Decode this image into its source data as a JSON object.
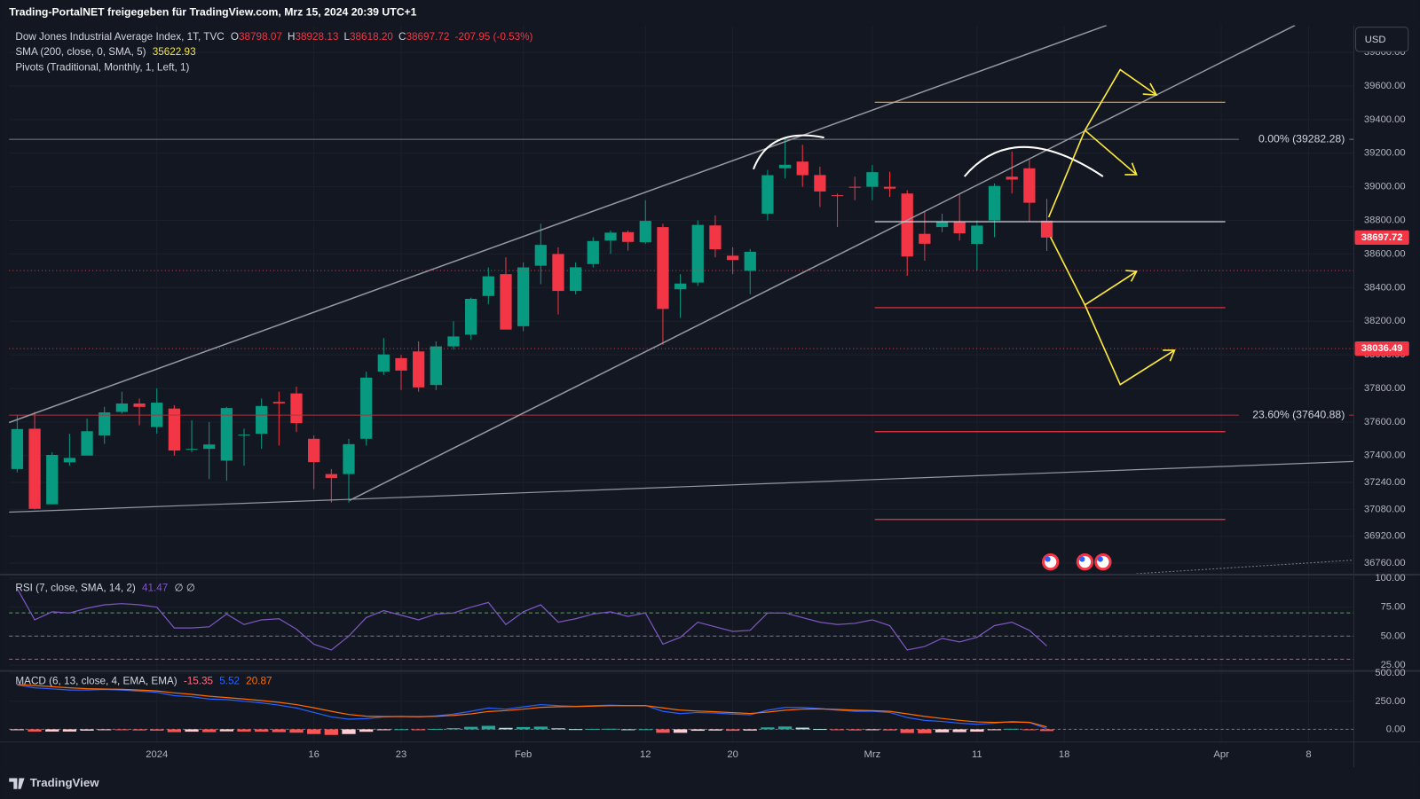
{
  "header": {
    "title": "Trading-PortalNET freigegeben für TradingView.com, Mrz 15, 2024 20:39 UTC+1"
  },
  "footer": {
    "brand": "TradingView"
  },
  "currency": "USD",
  "chart_data": [
    {
      "type": "candlestick",
      "title": "Dow Jones Industrial Average Index, 1T, TVC",
      "ohlc_prefixes": [
        "O",
        "H",
        "L",
        "C"
      ],
      "ohlc_value_labels": [
        "38798.07",
        "38928.13",
        "38618.20",
        "38697.72"
      ],
      "change_label": "-207.95 (-0.53%)",
      "indicators": [
        {
          "label": "SMA (200, close, 0, SMA, 5)",
          "value": 35622.93,
          "color": "#f0e442"
        },
        {
          "label": "Pivots (Traditional, Monthly, 1, Left, 1)"
        }
      ],
      "up_color": "#089981",
      "down_color": "#f23645",
      "grid": true,
      "categories": [
        null,
        null,
        null,
        null,
        null,
        null,
        null,
        null,
        "2024",
        null,
        null,
        null,
        null,
        null,
        null,
        null,
        null,
        "16",
        null,
        null,
        null,
        null,
        "23",
        null,
        null,
        null,
        null,
        null,
        null,
        "Feb",
        null,
        null,
        null,
        null,
        null,
        null,
        "12",
        null,
        null,
        null,
        null,
        "20",
        null,
        null,
        null,
        null,
        null,
        null,
        null,
        "Mrz",
        null,
        null,
        null,
        null,
        null,
        "11",
        null,
        null,
        null,
        null,
        "18",
        null,
        null,
        null,
        null,
        null,
        null,
        null,
        null,
        "Apr",
        null,
        null,
        null,
        null,
        "8",
        null,
        null
      ],
      "open": [
        37320,
        37560,
        37110,
        37360,
        37400,
        37520,
        37660,
        37710,
        37570,
        37680,
        37440,
        37440,
        37370,
        37520,
        37530,
        37720,
        37770,
        37500,
        37290,
        37290,
        37500,
        37900,
        37980,
        38020,
        37820,
        38050,
        38120,
        38350,
        38480,
        38170,
        38530,
        38600,
        38380,
        38540,
        38680,
        38730,
        38670,
        38760,
        38390,
        38430,
        38770,
        38590,
        38500,
        38840,
        39110,
        39150,
        39070,
        38950,
        39000,
        39000,
        39000,
        38960,
        38720,
        38760,
        38790,
        38660,
        38800,
        39060,
        39110,
        38798.07,
        null,
        null,
        null,
        null,
        null,
        null,
        null,
        null,
        null,
        null,
        null,
        null,
        null,
        null,
        null,
        null,
        null
      ],
      "high": [
        37640,
        37660,
        37420,
        37530,
        37620,
        37690,
        37780,
        37740,
        37800,
        37700,
        37610,
        37600,
        37690,
        37560,
        37740,
        37780,
        37810,
        37520,
        37320,
        37500,
        37900,
        38100,
        38000,
        38080,
        38080,
        38200,
        38340,
        38520,
        38580,
        38550,
        38780,
        38640,
        38550,
        38700,
        38740,
        38740,
        38920,
        38780,
        38480,
        38800,
        38830,
        38640,
        38630,
        39100,
        39280,
        39250,
        39120,
        38960,
        39060,
        39130,
        39090,
        38980,
        38850,
        38840,
        38960,
        38800,
        39020,
        39210,
        39160,
        38928.13,
        null,
        null,
        null,
        null,
        null,
        null,
        null,
        null,
        null,
        null,
        null,
        null,
        null,
        null,
        null,
        null,
        null
      ],
      "low": [
        37300,
        37080,
        37110,
        37340,
        37400,
        37470,
        37650,
        37580,
        37530,
        37400,
        37420,
        37260,
        37250,
        37340,
        37440,
        37460,
        37540,
        37200,
        37120,
        37120,
        37460,
        37880,
        37790,
        37780,
        37790,
        38030,
        38090,
        38300,
        38150,
        38140,
        38420,
        38240,
        38360,
        38520,
        38600,
        38620,
        38660,
        38060,
        38220,
        38410,
        38580,
        38480,
        38360,
        38800,
        39050,
        39000,
        38880,
        38760,
        38920,
        38920,
        38940,
        38470,
        38560,
        38730,
        38680,
        38500,
        38700,
        38960,
        38790,
        38618.2,
        null,
        null,
        null,
        null,
        null,
        null,
        null,
        null,
        null,
        null,
        null,
        null,
        null,
        null,
        null,
        null,
        null
      ],
      "close": [
        37558,
        37083,
        37404,
        37386,
        37545,
        37657,
        37710,
        37690,
        37715,
        37430,
        37440,
        37466,
        37683,
        37525,
        37695,
        37711,
        37593,
        37361,
        37267,
        37468,
        37864,
        38002,
        37906,
        37806,
        38050,
        38109,
        38333,
        38467,
        38150,
        38520,
        38654,
        38380,
        38521,
        38677,
        38727,
        38672,
        38797,
        38273,
        38424,
        38773,
        38628,
        38564,
        38613,
        39069,
        39131,
        39069,
        38972,
        38949,
        38996,
        39087,
        38989,
        38585,
        38661,
        38791,
        38723,
        38769,
        39005,
        39043,
        38905,
        38697.72,
        null,
        null,
        null,
        null,
        null,
        null,
        null,
        null,
        null,
        null,
        null,
        null,
        null,
        null,
        null,
        null,
        null
      ],
      "ylim": [
        36697,
        39961
      ],
      "yticks": [
        {
          "value": 39800,
          "label": "39800.00"
        },
        {
          "value": 39600,
          "label": "39600.00"
        },
        {
          "value": 39400,
          "label": "39400.00"
        },
        {
          "value": 39200,
          "label": "39200.00"
        },
        {
          "value": 39000,
          "label": "39000.00"
        },
        {
          "value": 38800,
          "label": "38800.00"
        },
        {
          "value": 38600,
          "label": "38600.00"
        },
        {
          "value": 38400,
          "label": "38400.00"
        },
        {
          "value": 38200,
          "label": "38200.00"
        },
        {
          "value": 38000,
          "label": "38000.00"
        },
        {
          "value": 37800,
          "label": "37800.00"
        },
        {
          "value": 37600,
          "label": "37600.00"
        },
        {
          "value": 37400,
          "label": "37400.00"
        },
        {
          "value": 37240,
          "label": "37240.00"
        },
        {
          "value": 37080,
          "label": "37080.00"
        },
        {
          "value": 36920,
          "label": "36920.00"
        },
        {
          "value": 36760,
          "label": "36760.00"
        }
      ],
      "fib_levels": [
        {
          "value": 39282.28,
          "label": "0.00% (39282.28)",
          "color": "#787b86"
        },
        {
          "value": 37640.88,
          "label": "23.60% (37640.88)",
          "color": "#b2323c"
        }
      ],
      "price_lines": [
        {
          "value": 38036.49,
          "color": "#f23645"
        }
      ]
    },
    {
      "type": "line",
      "title": "RSI (7, close, SMA, 14, 2)",
      "extra": "∅ ∅",
      "color": "#7e57c2",
      "grid": true,
      "values": [
        91,
        64,
        71,
        70,
        74,
        77,
        78,
        77,
        75,
        57,
        57,
        58,
        69,
        60,
        64,
        65,
        56,
        43,
        38,
        50,
        66,
        72,
        68,
        64,
        69,
        70,
        75,
        79,
        60,
        71,
        77,
        62,
        65,
        69,
        71,
        67,
        70,
        43,
        49,
        62,
        58,
        54,
        55,
        70,
        70,
        66,
        62,
        60,
        61,
        64,
        59,
        38,
        41,
        48,
        45,
        49,
        59,
        62,
        55,
        41.47
      ],
      "ylim": [
        20.3,
        102.3
      ],
      "yticks": [
        {
          "value": 100,
          "label": "100.00"
        },
        {
          "value": 75,
          "label": "75.00"
        },
        {
          "value": 50,
          "label": "50.00"
        },
        {
          "value": 25,
          "label": "25.00"
        }
      ],
      "bands": [
        {
          "value": 70,
          "color": "#4caf50"
        },
        {
          "value": 50,
          "color": "#787b86"
        },
        {
          "value": 30,
          "color": "#f23645"
        }
      ]
    },
    {
      "type": "macd",
      "title": "MACD (6, 13, close, 4, EMA, EMA)",
      "grid": true,
      "histogram": [
        -5,
        -20,
        -20,
        -20,
        -12,
        -4,
        -6,
        -10,
        -12,
        -25,
        -21,
        -25,
        -18,
        -20,
        -21,
        -25,
        -30,
        -42,
        -50,
        -42,
        -22,
        -4,
        1,
        -3,
        4,
        11,
        22,
        31,
        13,
        20,
        24,
        9,
        2,
        4,
        5,
        0,
        1,
        -31,
        -31,
        -13,
        -11,
        -13,
        -11,
        17,
        25,
        15,
        3,
        -7,
        -10,
        -6,
        -10,
        -33,
        -35,
        -27,
        -25,
        -21,
        -7,
        5,
        -3,
        -15.35
      ],
      "histogram_colors": [
        "#26a69a",
        "#b2dfdb",
        "#ffcdd2",
        "#ff5252"
      ],
      "histogram_legend_color": "#ff6b81",
      "series": [
        {
          "color": "#2962ff",
          "values": [
            395,
            370,
            360,
            350,
            350,
            355,
            350,
            340,
            330,
            300,
            290,
            270,
            265,
            250,
            235,
            215,
            190,
            150,
            110,
            90,
            95,
            110,
            115,
            110,
            120,
            135,
            160,
            190,
            180,
            200,
            220,
            210,
            205,
            210,
            215,
            210,
            212,
            160,
            140,
            150,
            145,
            135,
            130,
            170,
            195,
            195,
            185,
            170,
            160,
            160,
            150,
            105,
            80,
            70,
            55,
            45,
            55,
            70,
            60,
            5.52
          ]
        },
        {
          "color": "#ff6d00",
          "values": [
            400,
            390,
            380,
            370,
            362,
            359,
            356,
            350,
            342,
            325,
            311,
            295,
            283,
            270,
            256,
            240,
            220,
            192,
            160,
            132,
            117,
            114,
            114,
            113,
            116,
            124,
            138,
            159,
            167,
            180,
            196,
            201,
            203,
            206,
            210,
            210,
            211,
            191,
            171,
            163,
            156,
            148,
            141,
            153,
            170,
            180,
            182,
            177,
            170,
            166,
            160,
            138,
            115,
            97,
            80,
            66,
            62,
            65,
            63,
            20.87
          ]
        }
      ],
      "ylim": [
        -113,
        516
      ],
      "yticks": [
        {
          "value": 500,
          "label": "500.00"
        },
        {
          "value": 250,
          "label": "250.00"
        },
        {
          "value": 0,
          "label": "0.00"
        }
      ]
    }
  ]
}
